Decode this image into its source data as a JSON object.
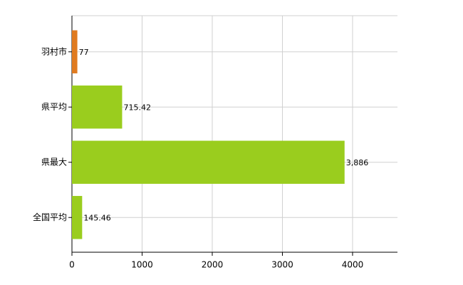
{
  "chart_data": {
    "type": "bar",
    "orientation": "horizontal",
    "categories": [
      "羽村市",
      "県平均",
      "県最大",
      "全国平均"
    ],
    "values": [
      77,
      715.42,
      3886,
      145.46
    ],
    "value_labels": [
      "77",
      "715.42",
      "3,886",
      "145.46"
    ],
    "colors": [
      "#e07b20",
      "#9acd1e",
      "#9acd1e",
      "#9acd1e"
    ],
    "xlim": [
      0,
      4640
    ],
    "xticks": [
      0,
      1000,
      2000,
      3000,
      4000
    ],
    "grid": true
  }
}
